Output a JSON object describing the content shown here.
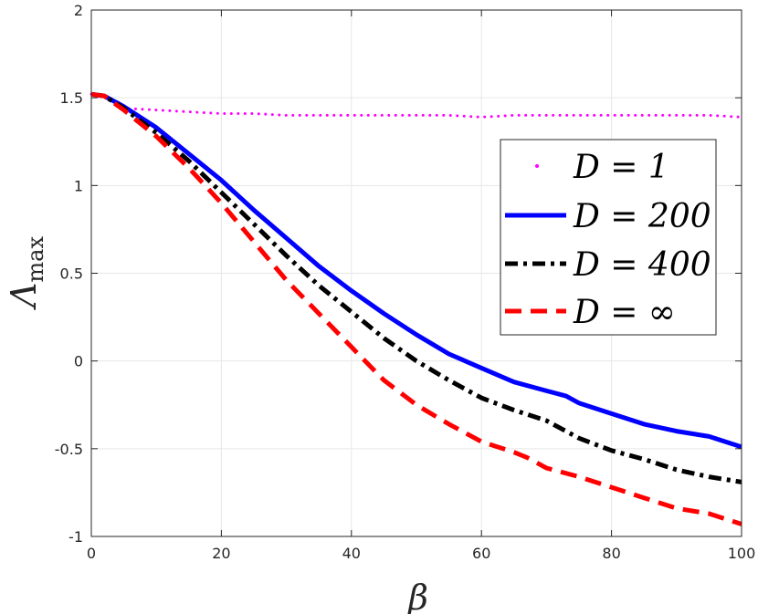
{
  "chart_data": {
    "type": "line",
    "xlabel": "β",
    "ylabel": "Λ",
    "ylabel_subscript": "max",
    "xlim": [
      0,
      100
    ],
    "ylim": [
      -1,
      2
    ],
    "xticks": [
      0,
      20,
      40,
      60,
      80,
      100
    ],
    "yticks": [
      -1,
      -0.5,
      0,
      0.5,
      1,
      1.5,
      2
    ],
    "xtick_labels": [
      "0",
      "20",
      "40",
      "60",
      "80",
      "100"
    ],
    "ytick_labels": [
      "-1",
      "-0.5",
      "0",
      "0.5",
      "1",
      "1.5",
      "2"
    ],
    "grid": true,
    "legend_position": "right",
    "series": [
      {
        "name": "D = 1",
        "style": "dotted",
        "color": "#ff00ff",
        "x": [
          0,
          2,
          5,
          10,
          15,
          20,
          25,
          30,
          35,
          40,
          45,
          50,
          55,
          60,
          65,
          70,
          75,
          80,
          85,
          90,
          95,
          100
        ],
        "y": [
          1.52,
          1.51,
          1.44,
          1.43,
          1.42,
          1.41,
          1.41,
          1.4,
          1.4,
          1.4,
          1.4,
          1.4,
          1.4,
          1.39,
          1.4,
          1.4,
          1.4,
          1.4,
          1.4,
          1.4,
          1.4,
          1.39
        ]
      },
      {
        "name": "D = 200",
        "style": "solid",
        "color": "#0000ff",
        "x": [
          0,
          2,
          5,
          10,
          15,
          20,
          25,
          30,
          35,
          40,
          45,
          50,
          55,
          60,
          65,
          70,
          73,
          75,
          80,
          85,
          90,
          95,
          100
        ],
        "y": [
          1.52,
          1.51,
          1.45,
          1.33,
          1.18,
          1.03,
          0.86,
          0.7,
          0.54,
          0.4,
          0.27,
          0.15,
          0.04,
          -0.04,
          -0.12,
          -0.17,
          -0.2,
          -0.24,
          -0.3,
          -0.36,
          -0.4,
          -0.43,
          -0.49
        ]
      },
      {
        "name": "D = 400",
        "style": "dashdot",
        "color": "#000000",
        "x": [
          0,
          2,
          5,
          10,
          15,
          20,
          25,
          30,
          35,
          40,
          45,
          50,
          55,
          60,
          65,
          70,
          75,
          80,
          85,
          90,
          95,
          100
        ],
        "y": [
          1.52,
          1.51,
          1.44,
          1.3,
          1.14,
          0.96,
          0.78,
          0.6,
          0.43,
          0.28,
          0.13,
          0.0,
          -0.11,
          -0.21,
          -0.28,
          -0.34,
          -0.44,
          -0.51,
          -0.56,
          -0.62,
          -0.66,
          -0.69
        ]
      },
      {
        "name": "D = ∞",
        "style": "dashed",
        "color": "#ff0000",
        "x": [
          0,
          2,
          5,
          10,
          15,
          20,
          25,
          30,
          35,
          40,
          45,
          50,
          55,
          60,
          65,
          67,
          70,
          75,
          80,
          85,
          90,
          95,
          100
        ],
        "y": [
          1.52,
          1.51,
          1.43,
          1.28,
          1.1,
          0.9,
          0.68,
          0.46,
          0.27,
          0.08,
          -0.11,
          -0.25,
          -0.36,
          -0.46,
          -0.52,
          -0.55,
          -0.61,
          -0.66,
          -0.72,
          -0.78,
          -0.84,
          -0.87,
          -0.93
        ]
      }
    ]
  }
}
